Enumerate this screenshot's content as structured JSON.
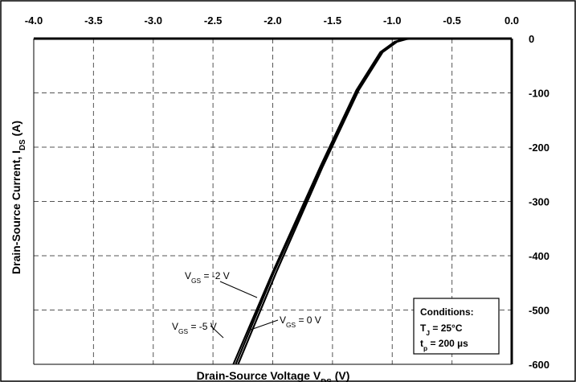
{
  "chart_data": {
    "type": "line",
    "xlabel": "Drain-Source Voltage V",
    "xlabel_sub": "DS",
    "xlabel_unit": "(V)",
    "ylabel": "Drain-Source Current, I",
    "ylabel_sub": "DS",
    "ylabel_unit": "(A)",
    "xlim": [
      -4.0,
      0.0
    ],
    "ylim": [
      -600,
      0
    ],
    "x_ticks": [
      "-4.0",
      "-3.5",
      "-3.0",
      "-2.5",
      "-2.0",
      "-1.5",
      "-1.0",
      "-0.5",
      "0.0"
    ],
    "y_ticks": [
      "0",
      "-100",
      "-200",
      "-300",
      "-400",
      "-500",
      "-600"
    ],
    "x_axis_position": "top",
    "y_axis_position": "right",
    "grid": true,
    "series": [
      {
        "name": "V_GS = -5 V",
        "points": [
          [
            -2.33,
            -600
          ],
          [
            -2.0,
            -430
          ],
          [
            -1.6,
            -235
          ],
          [
            -1.3,
            -95
          ],
          [
            -1.1,
            -25
          ],
          [
            -0.98,
            -6
          ],
          [
            -0.9,
            -1
          ],
          [
            -0.85,
            0
          ],
          [
            0.0,
            0
          ]
        ]
      },
      {
        "name": "V_GS = -2 V",
        "points": [
          [
            -2.31,
            -600
          ],
          [
            -1.99,
            -430
          ],
          [
            -1.59,
            -235
          ],
          [
            -1.29,
            -95
          ],
          [
            -1.09,
            -25
          ],
          [
            -0.97,
            -6
          ],
          [
            -0.89,
            -1
          ],
          [
            -0.84,
            0
          ],
          [
            0.0,
            0
          ]
        ]
      },
      {
        "name": "V_GS = 0 V",
        "points": [
          [
            -2.29,
            -600
          ],
          [
            -1.97,
            -430
          ],
          [
            -1.58,
            -235
          ],
          [
            -1.28,
            -95
          ],
          [
            -1.08,
            -25
          ],
          [
            -0.96,
            -6
          ],
          [
            -0.88,
            -1
          ],
          [
            -0.83,
            0
          ],
          [
            0.0,
            0
          ]
        ]
      }
    ],
    "annotations": [
      {
        "label": "V",
        "sub": "GS",
        "rest": " = -2 V"
      },
      {
        "label": "V",
        "sub": "GS",
        "rest": " = -5 V"
      },
      {
        "label": "V",
        "sub": "GS",
        "rest": " = 0 V"
      }
    ],
    "conditions": {
      "title": "Conditions:",
      "line1_label": "T",
      "line1_sub": "J",
      "line1_rest": " = 25°C",
      "line2_label": "t",
      "line2_sub": "p",
      "line2_rest": " = 200 µs"
    }
  }
}
